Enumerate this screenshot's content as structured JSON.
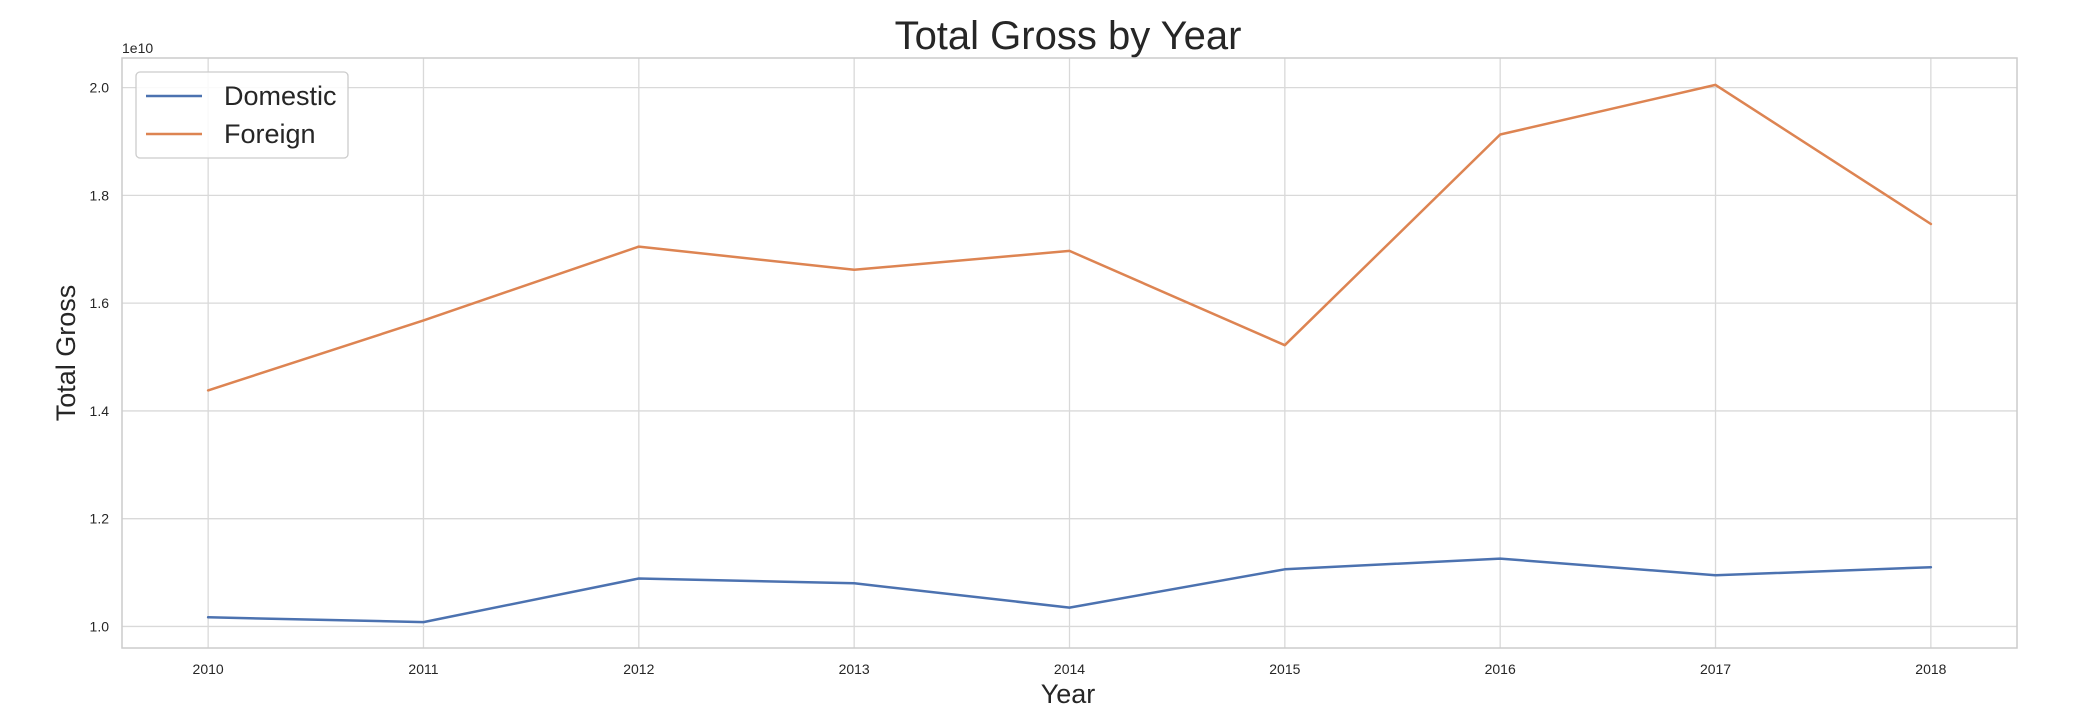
{
  "chart_data": {
    "type": "line",
    "title": "Total Gross by Year",
    "xlabel": "Year",
    "ylabel": "Total Gross",
    "y_scale_label": "1e10",
    "x": [
      2010,
      2011,
      2012,
      2013,
      2014,
      2015,
      2016,
      2017,
      2018
    ],
    "x_tick_labels": [
      "2010",
      "2011",
      "2012",
      "2013",
      "2014",
      "2015",
      "2016",
      "2017",
      "2018"
    ],
    "y_ticks": [
      1.0,
      1.2,
      1.4,
      1.6,
      1.8,
      2.0
    ],
    "y_tick_labels": [
      "1.0",
      "1.2",
      "1.4",
      "1.6",
      "1.8",
      "2.0"
    ],
    "xlim": [
      2009.6,
      2018.4
    ],
    "ylim": [
      0.96,
      2.055
    ],
    "grid": true,
    "legend_position": "top-left",
    "series": [
      {
        "name": "Domestic",
        "color": "#4c72b0",
        "values": [
          1.017,
          1.008,
          1.089,
          1.08,
          1.035,
          1.106,
          1.126,
          1.095,
          1.11
        ]
      },
      {
        "name": "Foreign",
        "color": "#dd8452",
        "values": [
          1.438,
          1.568,
          1.705,
          1.662,
          1.697,
          1.522,
          1.913,
          2.005,
          1.747
        ]
      }
    ]
  }
}
